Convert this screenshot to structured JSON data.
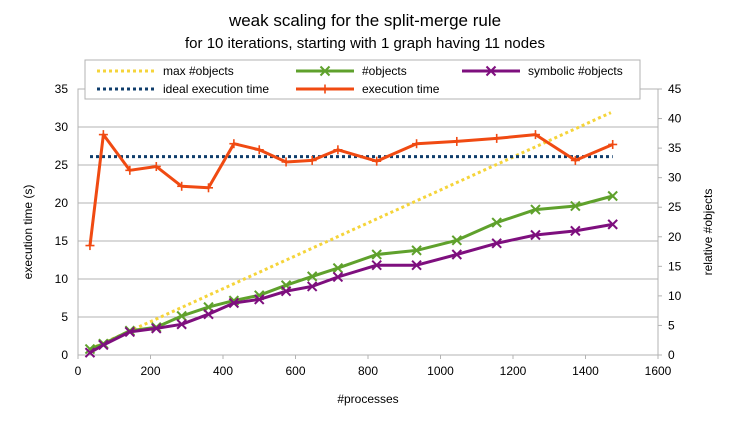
{
  "chart_data": {
    "type": "line",
    "title": "weak scaling for the split-merge rule",
    "subtitle": "for 10 iterations, starting with 1 graph having 11 nodes",
    "xlabel": "#processes",
    "ylabel_left": "execution time (s)",
    "ylabel_right": "relative #objects",
    "xlim": [
      0,
      1600
    ],
    "xticks": [
      "0",
      "200",
      "400",
      "600",
      "800",
      "1000",
      "1200",
      "1400",
      "1600"
    ],
    "ylim_left": [
      0,
      35
    ],
    "yticks_left": [
      "0",
      "5",
      "10",
      "15",
      "20",
      "25",
      "30",
      "35"
    ],
    "ylim_right": [
      0,
      45
    ],
    "yticks_right": [
      "0",
      "5",
      "10",
      "15",
      "20",
      "25",
      "30",
      "35",
      "40",
      "45"
    ],
    "legend_position": "top",
    "series": [
      {
        "name": "max #objects",
        "axis": "right",
        "style": "dotted",
        "color": "#f5d43a",
        "marker": "none",
        "x": [
          33,
          1470
        ],
        "y": [
          1,
          41
        ]
      },
      {
        "name": "#objects",
        "axis": "right",
        "style": "solid",
        "color": "#5fa12c",
        "marker": "x",
        "x": [
          33,
          70,
          143,
          216,
          286,
          360,
          430,
          500,
          574,
          646,
          717,
          824,
          934,
          1045,
          1155,
          1262,
          1372,
          1475
        ],
        "y": [
          1.0,
          1.9,
          4.1,
          4.7,
          6.6,
          8.1,
          9.2,
          10.1,
          11.8,
          13.3,
          14.7,
          17.0,
          17.7,
          19.4,
          22.4,
          24.6,
          25.2,
          26.9
        ]
      },
      {
        "name": "symbolic #objects",
        "axis": "right",
        "style": "solid",
        "color": "#7e0f7e",
        "marker": "x",
        "x": [
          33,
          70,
          143,
          216,
          286,
          360,
          430,
          500,
          574,
          646,
          717,
          824,
          934,
          1045,
          1155,
          1262,
          1372,
          1475
        ],
        "y": [
          0.4,
          1.7,
          3.9,
          4.5,
          5.2,
          6.9,
          8.8,
          9.4,
          10.8,
          11.6,
          13.2,
          15.2,
          15.2,
          17.0,
          18.9,
          20.3,
          21.0,
          22.1
        ]
      },
      {
        "name": "ideal execution time",
        "axis": "left",
        "style": "dotted",
        "color": "#0f3d6b",
        "marker": "none",
        "x": [
          33,
          1475
        ],
        "y": [
          26.1,
          26.1
        ]
      },
      {
        "name": "execution time",
        "axis": "left",
        "style": "solid",
        "color": "#f04a12",
        "marker": "+",
        "x": [
          33,
          70,
          143,
          216,
          286,
          360,
          430,
          500,
          574,
          646,
          717,
          824,
          934,
          1045,
          1155,
          1262,
          1372,
          1475
        ],
        "y": [
          14.4,
          29.0,
          24.3,
          24.8,
          22.2,
          22.0,
          27.8,
          27.0,
          25.4,
          25.6,
          27.0,
          25.5,
          27.8,
          28.1,
          28.5,
          29.0,
          25.6,
          27.7
        ]
      }
    ]
  }
}
